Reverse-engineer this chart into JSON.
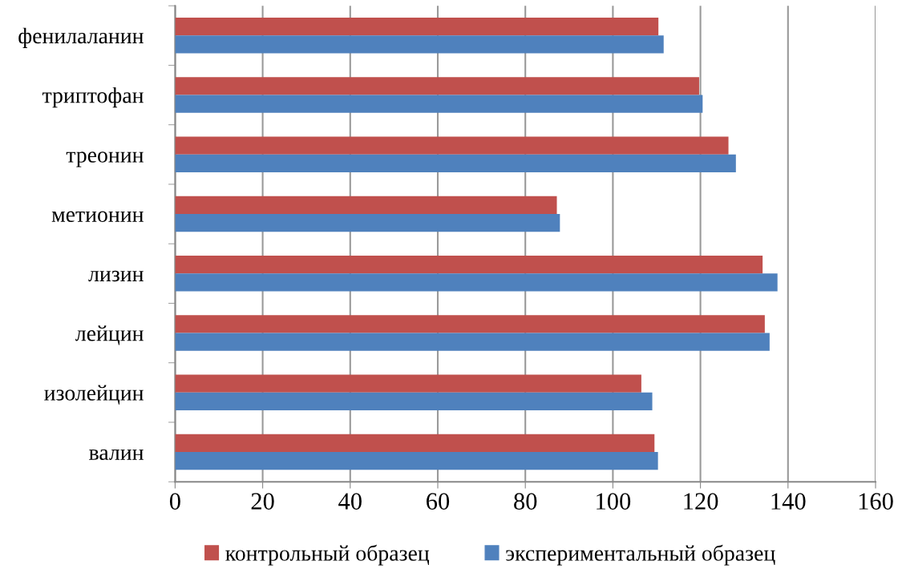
{
  "chart_data": {
    "type": "bar",
    "orientation": "horizontal",
    "categories": [
      "фенилаланин",
      "триптофан",
      "треонин",
      "метионин",
      "лизин",
      "лейцин",
      "изолейцин",
      "валин"
    ],
    "series": [
      {
        "name": "контрольный образец",
        "color": "#c0504d",
        "values": [
          110.4,
          119.7,
          126.4,
          87.2,
          134.2,
          134.7,
          106.5,
          109.5
        ]
      },
      {
        "name": "экспериментальный образец",
        "color": "#4f81bd",
        "values": [
          111.6,
          120.5,
          128.1,
          87.9,
          137.6,
          135.8,
          109.0,
          110.3
        ]
      }
    ],
    "xlim": [
      0,
      160
    ],
    "xticks": [
      0,
      20,
      40,
      60,
      80,
      100,
      120,
      140,
      160
    ],
    "grid": "x",
    "legend": "bottom"
  }
}
